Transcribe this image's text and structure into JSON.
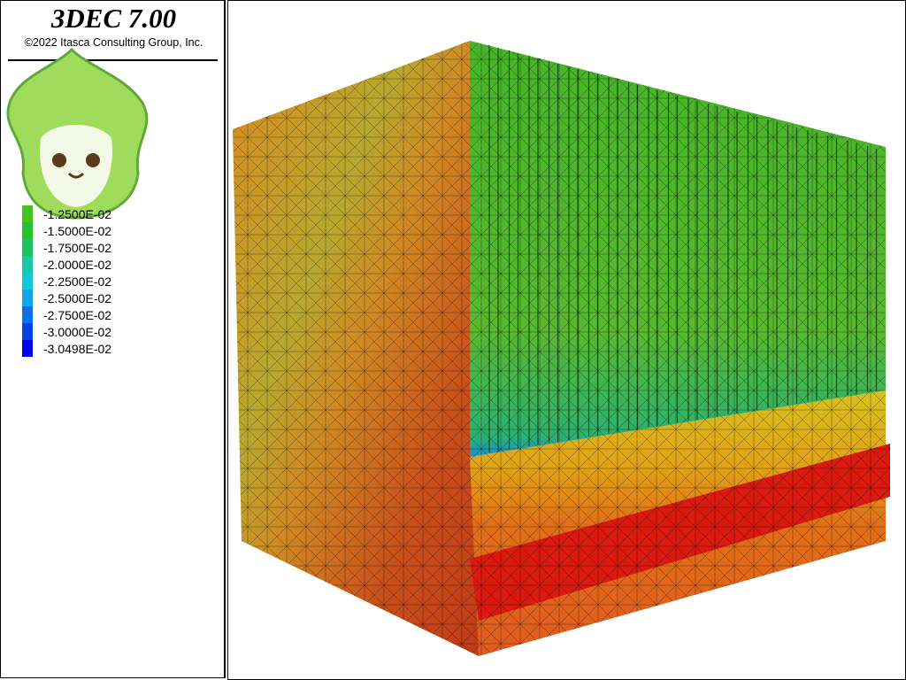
{
  "header": {
    "title": "3DEC 7.00",
    "copyright": "©2022 Itasca Consulting Group, Inc."
  },
  "legend": {
    "items": [
      {
        "label": "-1.2500E-02",
        "color": "#45c41c"
      },
      {
        "label": "-1.5000E-02",
        "color": "#26c22c"
      },
      {
        "label": "-1.7500E-02",
        "color": "#1ec25e"
      },
      {
        "label": "-2.0000E-02",
        "color": "#18c9a4"
      },
      {
        "label": "-2.2500E-02",
        "color": "#14c6dc"
      },
      {
        "label": "-2.5000E-02",
        "color": "#0fa6ea"
      },
      {
        "label": "-2.7500E-02",
        "color": "#0a72e6"
      },
      {
        "label": "-3.0000E-02",
        "color": "#0842e2"
      },
      {
        "label": "-3.0498E-02",
        "color": "#0000f0"
      }
    ]
  }
}
